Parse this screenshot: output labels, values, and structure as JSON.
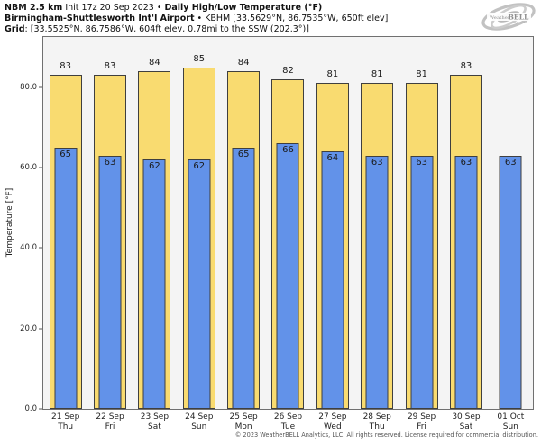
{
  "header": {
    "line1_bold1": "NBM 2.5 km",
    "line1_regular": " Init 17z 20 Sep 2023 • ",
    "line1_bold2": "Daily High/Low Temperature (°F)",
    "line2_bold": "Birmingham-Shuttlesworth Int'l Airport",
    "line2_regular": " • KBHM [33.5629°N, 86.7535°W, 650ft elev]",
    "line3_bold": "Grid",
    "line3_regular": ": [33.5525°N, 86.7586°W, 604ft elev, 0.78mi to the SSW (202.3°)]"
  },
  "logo": {
    "brand_prefix": "Weather",
    "brand_suffix": "BELL",
    "tagline": "Analytics LLC"
  },
  "chart_data": {
    "type": "bar",
    "title": "Daily High/Low Temperature (°F)",
    "xlabel": "",
    "ylabel": "Temperature [°F]",
    "ylim": [
      0,
      92.5
    ],
    "grid": false,
    "legend_position": "none",
    "yticks": [
      {
        "value": 0,
        "label": "0.0"
      },
      {
        "value": 20,
        "label": "20.0"
      },
      {
        "value": 40,
        "label": "40.0"
      },
      {
        "value": 60,
        "label": "60.0"
      },
      {
        "value": 80,
        "label": "80.0"
      }
    ],
    "categories": [
      {
        "date": "21 Sep",
        "day": "Thu"
      },
      {
        "date": "22 Sep",
        "day": "Fri"
      },
      {
        "date": "23 Sep",
        "day": "Sat"
      },
      {
        "date": "24 Sep",
        "day": "Sun"
      },
      {
        "date": "25 Sep",
        "day": "Mon"
      },
      {
        "date": "26 Sep",
        "day": "Tue"
      },
      {
        "date": "27 Sep",
        "day": "Wed"
      },
      {
        "date": "28 Sep",
        "day": "Thu"
      },
      {
        "date": "29 Sep",
        "day": "Fri"
      },
      {
        "date": "30 Sep",
        "day": "Sat"
      },
      {
        "date": "01 Oct",
        "day": "Sun"
      }
    ],
    "series": [
      {
        "name": "Daily High",
        "color": "#f9db70",
        "values": [
          83,
          83,
          84,
          85,
          84,
          82,
          81,
          81,
          81,
          83,
          null
        ]
      },
      {
        "name": "Daily Low",
        "color": "#6292e9",
        "values": [
          65,
          63,
          62,
          62,
          65,
          66,
          64,
          63,
          63,
          63,
          63
        ]
      }
    ]
  },
  "colors": {
    "high_bar": "#f9db70",
    "low_bar": "#6292e9",
    "bar_edge": "#3f3f3f",
    "plot_background": "#f4f4f4",
    "spine": "#707070"
  },
  "footer": {
    "copyright": "© 2023 WeatherBELL Analytics, LLC. All rights reserved. License required for commercial distribution."
  }
}
